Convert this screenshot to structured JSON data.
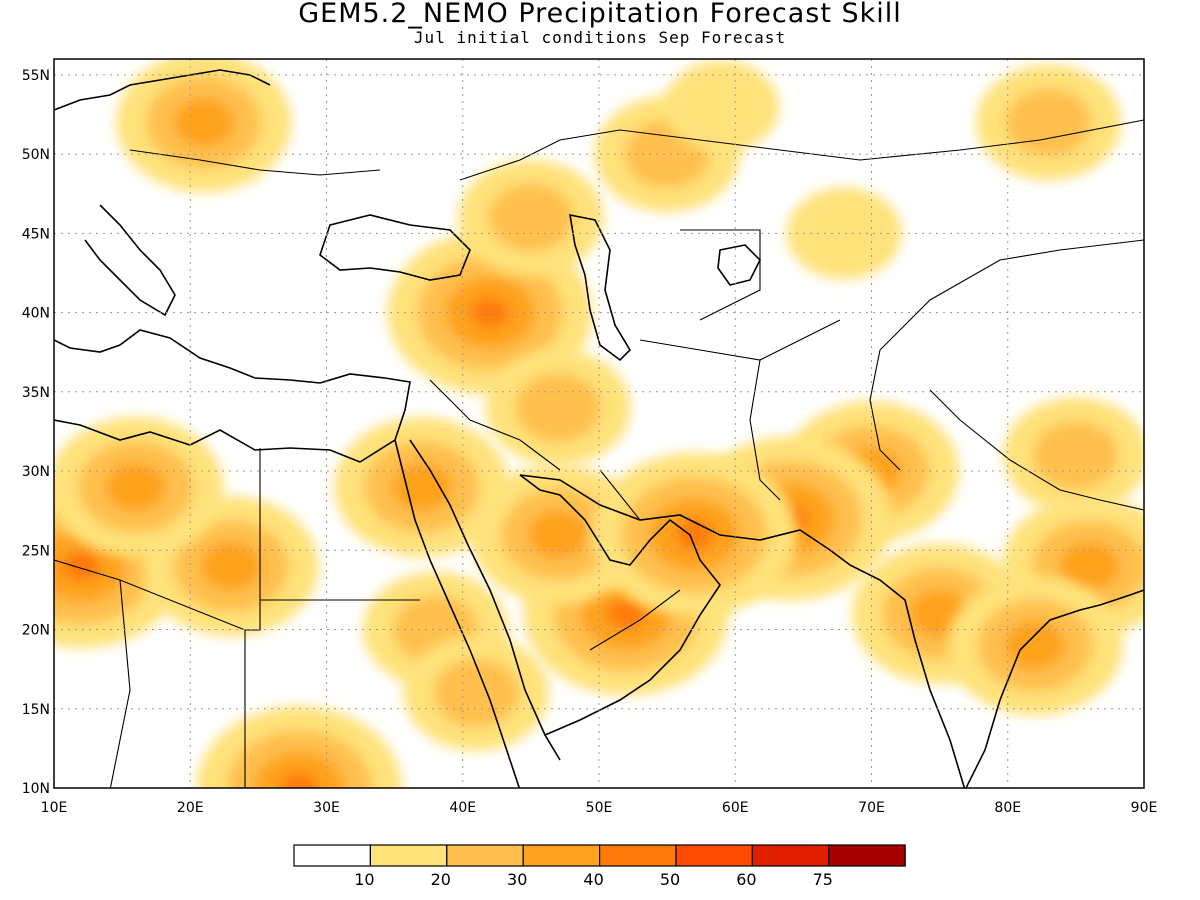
{
  "title": "GEM5.2_NEMO Precipitation Forecast Skill",
  "subtitle": "Jul initial conditions   Sep Forecast",
  "axes": {
    "lon_ticks": [
      "10E",
      "20E",
      "30E",
      "40E",
      "50E",
      "60E",
      "70E",
      "80E",
      "90E"
    ],
    "lat_ticks": [
      "10N",
      "15N",
      "20N",
      "25N",
      "30N",
      "35N",
      "40N",
      "45N",
      "50N",
      "55N"
    ],
    "lon_range": [
      10,
      90
    ],
    "lat_range": [
      10,
      56
    ],
    "grid": "dotted"
  },
  "colorbar": {
    "labels": [
      "10",
      "20",
      "30",
      "40",
      "50",
      "60",
      "75"
    ],
    "colors": [
      "#ffffff",
      "#ffe27a",
      "#ffc04d",
      "#ffa21f",
      "#ff7a0a",
      "#ff4a00",
      "#e01e00",
      "#a60000"
    ]
  },
  "chart_data": {
    "type": "heatmap",
    "title": "GEM5.2_NEMO Precipitation Forecast Skill",
    "subtitle": "Jul initial conditions   Sep Forecast",
    "x_range": [
      10,
      90
    ],
    "y_range": [
      10,
      56
    ],
    "levels": [
      10,
      20,
      30,
      40,
      50,
      60,
      75
    ],
    "regions": [
      {
        "lon": 21,
        "lat": 52,
        "level": 3
      },
      {
        "lon": 12,
        "lat": 24,
        "level": 4
      },
      {
        "lon": 23,
        "lat": 24,
        "level": 3
      },
      {
        "lon": 16,
        "lat": 29,
        "level": 3
      },
      {
        "lon": 42,
        "lat": 40,
        "level": 4
      },
      {
        "lon": 45,
        "lat": 46,
        "level": 2
      },
      {
        "lon": 52,
        "lat": 21,
        "level": 4
      },
      {
        "lon": 47,
        "lat": 26,
        "level": 3
      },
      {
        "lon": 70,
        "lat": 30,
        "level": 3
      },
      {
        "lon": 64,
        "lat": 27,
        "level": 4
      },
      {
        "lon": 57,
        "lat": 26,
        "level": 4
      },
      {
        "lon": 83,
        "lat": 52,
        "level": 2
      },
      {
        "lon": 86,
        "lat": 24,
        "level": 3
      },
      {
        "lon": 75,
        "lat": 21,
        "level": 3
      },
      {
        "lon": 82,
        "lat": 19,
        "level": 3
      },
      {
        "lon": 28,
        "lat": 10,
        "level": 4
      },
      {
        "lon": 37,
        "lat": 29,
        "level": 3
      },
      {
        "lon": 55,
        "lat": 50,
        "level": 2
      },
      {
        "lon": 47,
        "lat": 34,
        "level": 2
      },
      {
        "lon": 38,
        "lat": 20,
        "level": 2
      },
      {
        "lon": 41,
        "lat": 16,
        "level": 2
      },
      {
        "lon": 85,
        "lat": 31,
        "level": 2
      },
      {
        "lon": 68,
        "lat": 45,
        "level": 1
      },
      {
        "lon": 59,
        "lat": 53,
        "level": 1
      }
    ]
  }
}
